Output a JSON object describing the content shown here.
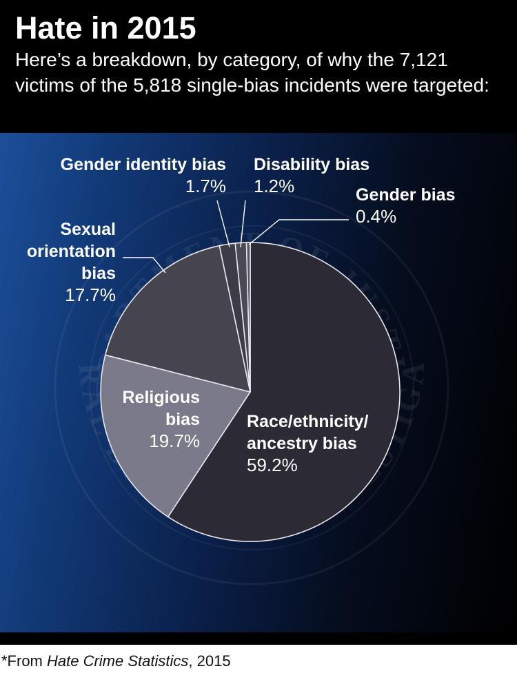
{
  "title": "Hate in 2015",
  "subtitle": "Here’s a breakdown, by category, of why the 7,121 victims of the 5,818 single-bias incidents were targeted:",
  "source": {
    "prefix": "*From ",
    "italic": "Hate Crime Statistics",
    "suffix": ", 2015"
  },
  "watermark": {
    "top_text": "DEPARTMENT OF JUSTICE",
    "bottom_text": "FEDERAL BUREAU OF INVESTIGATION"
  },
  "colors": {
    "header_bg": "#000000",
    "panel_blue": "#1b4f9a",
    "slice_outline": "#e8e8ee"
  },
  "chart_data": {
    "type": "pie",
    "title": "Hate in 2015",
    "slices": [
      {
        "key": "race",
        "label": [
          "Race/ethnicity/",
          "ancestry bias"
        ],
        "value": 59.2,
        "value_text": "59.2%",
        "color": "#2b2a35"
      },
      {
        "key": "religious",
        "label": [
          "Religious",
          "bias"
        ],
        "value": 19.7,
        "value_text": "19.7%",
        "color": "#7a7a8a"
      },
      {
        "key": "sexual_orientation",
        "label": [
          "Sexual",
          "orientation",
          "bias"
        ],
        "value": 17.7,
        "value_text": "17.7%",
        "color": "#46454f"
      },
      {
        "key": "gender_identity",
        "label": [
          "Gender identity bias"
        ],
        "value": 1.7,
        "value_text": "1.7%",
        "color": "#3c3b46"
      },
      {
        "key": "disability",
        "label": [
          "Disability bias"
        ],
        "value": 1.2,
        "value_text": "1.2%",
        "color": "#4a4955"
      },
      {
        "key": "gender",
        "label": [
          "Gender bias"
        ],
        "value": 0.4,
        "value_text": "0.4%",
        "color": "#55545f"
      }
    ]
  }
}
